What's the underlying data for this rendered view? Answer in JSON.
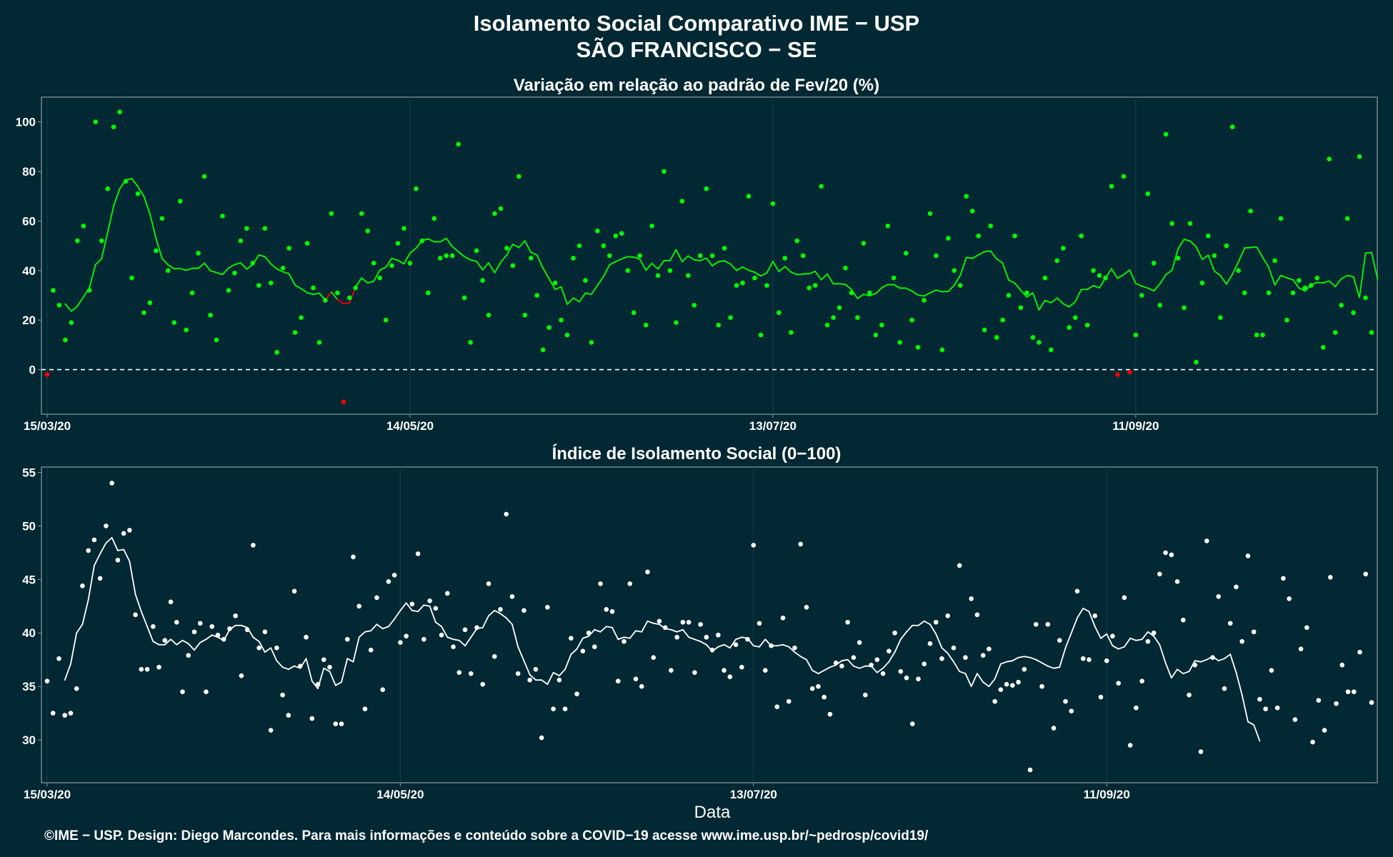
{
  "title_line1": "Isolamento Social Comparativo IME − USP",
  "title_line2": "SÃO FRANCISCO − SE",
  "xlabel": "Data",
  "footer": "©IME − USP. Design: Diego Marcondes. Para mais informações e conteúdo sobre a COVID−19 acesse www.ime.usp.br/~pedrosp/covid19/",
  "colors": {
    "background": "#022833",
    "positive": "#00ff00",
    "negative": "#ff0000",
    "index": "#ffffff",
    "frame": "#8a9ea4",
    "grid": "#163d48"
  },
  "chart_data": [
    {
      "type": "scatter",
      "title": "Variação em relação ao padrão de Fev/20 (%)",
      "start_date": "2020-03-15",
      "x_ticks": [
        "15/03/20",
        "14/05/20",
        "13/07/20",
        "11/09/20"
      ],
      "y_ticks": [
        0,
        20,
        40,
        60,
        80,
        100
      ],
      "ylim": [
        -18,
        110
      ],
      "reference_line": 0,
      "values": [
        -2,
        32,
        26,
        12,
        19,
        52,
        58,
        32,
        100,
        52,
        73,
        98,
        104,
        76,
        37,
        71,
        23,
        27,
        48,
        61,
        40,
        19,
        68,
        16,
        31,
        47,
        78,
        22,
        12,
        62,
        32,
        39,
        52,
        57,
        43,
        34,
        57,
        35,
        7,
        41,
        49,
        15,
        21,
        51,
        33,
        11,
        28,
        63,
        31,
        -13,
        29,
        33,
        63,
        56,
        43,
        37,
        20,
        42,
        51,
        57,
        43,
        73,
        52,
        31,
        61,
        45,
        46,
        46,
        91,
        29,
        11,
        48,
        36,
        22,
        63,
        65,
        49,
        42,
        78,
        22,
        45,
        30,
        8,
        17,
        35,
        20,
        14,
        45,
        50,
        36,
        11,
        56,
        50,
        46,
        54,
        55,
        40,
        23,
        46,
        18,
        58,
        38,
        80,
        40,
        19,
        68,
        38,
        26,
        46,
        73,
        46,
        18,
        49,
        21,
        34,
        35,
        70,
        37,
        14,
        34,
        67,
        23,
        45,
        15,
        52,
        46,
        33,
        34,
        74,
        18,
        21,
        25,
        41,
        31,
        21,
        51,
        31,
        14,
        18,
        58,
        37,
        11,
        47,
        20,
        9,
        28,
        63,
        46,
        8,
        53,
        40,
        34,
        70,
        64,
        54,
        16,
        58,
        13,
        20,
        30,
        54,
        25,
        31,
        13,
        11,
        37,
        8,
        44,
        49,
        17,
        21,
        54,
        18,
        40,
        38,
        37,
        74,
        -2,
        78,
        -1,
        14,
        30,
        71,
        43,
        26,
        95,
        59,
        45,
        25,
        59,
        3,
        35,
        54,
        46,
        21,
        50,
        98,
        40,
        31,
        64,
        14,
        14,
        31,
        44,
        61,
        20,
        31,
        36,
        33,
        34,
        37,
        9,
        85,
        15,
        26,
        61,
        23,
        86,
        29,
        15
      ],
      "rolling_mean": [
        null,
        null,
        null,
        26.5,
        23.6,
        25.6,
        29.3,
        33.1,
        42.4,
        44.7,
        55.3,
        66.1,
        73.0,
        76.6,
        77.1,
        73.9,
        69.9,
        62.9,
        52.9,
        44.9,
        42.3,
        40.7,
        40.8,
        40.1,
        40.9,
        40.9,
        43.0,
        39.9,
        39.2,
        38.4,
        41.0,
        42.4,
        43.1,
        40.6,
        42.4,
        46.3,
        45.6,
        42.7,
        40.6,
        39.5,
        38.7,
        34.1,
        32.7,
        31.0,
        30.4,
        30.9,
        28.1,
        31.3,
        28.3,
        26.6,
        27.0,
        33.3,
        37.0,
        35.0,
        35.7,
        40.1,
        41.3,
        44.9,
        44.1,
        42.7,
        47.0,
        49.0,
        52.1,
        52.8,
        51.6,
        51.6,
        53.0,
        49.7,
        47.6,
        45.6,
        44.3,
        43.7,
        40.3,
        43.1,
        39.1,
        43.3,
        46.3,
        50.6,
        49.3,
        52.0,
        47.3,
        46.3,
        40.9,
        36.7,
        32.4,
        33.4,
        26.4,
        28.9,
        27.4,
        30.9,
        30.4,
        34.0,
        37.6,
        42.3,
        43.6,
        44.7,
        45.6,
        45.4,
        44.6,
        40.1,
        42.9,
        40.6,
        44.0,
        44.0,
        48.4,
        43.6,
        45.9,
        44.3,
        44.0,
        45.0,
        41.9,
        43.6,
        43.9,
        42.6,
        40.0,
        41.4,
        40.1,
        39.3,
        37.8,
        39.0,
        43.7,
        39.6,
        41.6,
        39.4,
        38.3,
        38.6,
        38.7,
        39.7,
        36.3,
        38.6,
        34.6,
        34.7,
        34.4,
        32.3,
        28.7,
        30.4,
        29.8,
        30.7,
        33.0,
        34.3,
        34.3,
        32.9,
        32.9,
        31.7,
        30.1,
        29.7,
        31.0,
        32.1,
        31.4,
        31.6,
        34.1,
        38.1,
        45.3,
        44.9,
        46.3,
        47.6,
        47.9,
        44.7,
        43.0,
        36.1,
        34.9,
        32.0,
        29.3,
        31.0,
        24.1,
        27.9,
        27.0,
        28.9,
        26.6,
        25.3,
        27.4,
        32.3,
        32.4,
        33.9,
        33.0,
        37.0,
        40.7,
        36.9,
        38.3,
        40.2,
        34.8,
        33.7,
        32.9,
        31.8,
        34.6,
        38.4,
        40.1,
        48.7,
        52.6,
        51.9,
        49.6,
        44.5,
        46.2,
        39.8,
        38.0,
        34.5,
        38.5,
        43.5,
        49.1,
        49.3,
        49.5,
        45.3,
        41.3,
        34.2,
        38.0,
        37.0,
        36.3,
        33.0,
        31.7,
        34.2,
        35.2,
        35.0,
        35.8,
        33.5,
        36.7,
        38.0,
        37.5,
        29.2,
        47.0,
        47.3,
        36.4,
        null,
        null,
        null
      ]
    },
    {
      "type": "scatter",
      "title": "Índice de Isolamento Social (0−100)",
      "start_date": "2020-03-15",
      "x_ticks": [
        "15/03/20",
        "14/05/20",
        "13/07/20",
        "11/09/20"
      ],
      "y_ticks": [
        30,
        35,
        40,
        45,
        50,
        55
      ],
      "ylim": [
        26,
        55.5
      ],
      "values": [
        35.5,
        32.5,
        37.6,
        32.3,
        32.5,
        34.8,
        44.4,
        47.7,
        48.7,
        45.1,
        50.0,
        54.0,
        46.8,
        49.3,
        49.6,
        41.7,
        36.6,
        36.6,
        40.6,
        36.8,
        39.3,
        42.9,
        41.0,
        34.5,
        37.9,
        40.1,
        40.9,
        34.5,
        40.6,
        39.8,
        39.4,
        40.4,
        41.6,
        36.0,
        40.3,
        48.2,
        38.6,
        40.1,
        30.9,
        38.6,
        34.2,
        32.3,
        43.9,
        36.9,
        39.6,
        32.0,
        35.2,
        37.5,
        36.8,
        31.5,
        31.5,
        39.4,
        47.1,
        42.5,
        32.9,
        38.4,
        43.3,
        34.7,
        44.8,
        45.4,
        39.1,
        39.7,
        42.7,
        47.4,
        39.4,
        43.0,
        42.3,
        39.8,
        43.7,
        38.7,
        36.3,
        40.3,
        36.2,
        40.5,
        35.2,
        44.6,
        37.8,
        42.2,
        51.1,
        43.4,
        36.2,
        42.1,
        35.6,
        36.6,
        30.2,
        42.4,
        32.9,
        35.6,
        32.9,
        39.5,
        34.3,
        38.3,
        40.0,
        38.7,
        44.6,
        42.2,
        42.0,
        35.5,
        39.2,
        44.6,
        35.7,
        35.0,
        45.7,
        37.7,
        41.1,
        40.5,
        36.5,
        39.6,
        41.0,
        41.0,
        36.3,
        40.8,
        39.6,
        38.4,
        39.8,
        36.5,
        35.9,
        38.9,
        36.8,
        39.4,
        48.2,
        40.9,
        36.5,
        38.8,
        33.1,
        41.4,
        33.6,
        38.6,
        48.3,
        42.4,
        34.8,
        35.0,
        34.0,
        32.4,
        37.2,
        36.9,
        41.0,
        37.7,
        39.1,
        34.2,
        37.0,
        37.5,
        36.2,
        38.3,
        40.0,
        36.4,
        35.8,
        31.5,
        35.7,
        37.1,
        39.0,
        41.0,
        37.6,
        41.6,
        38.6,
        46.3,
        37.7,
        43.2,
        41.7,
        37.9,
        38.5,
        33.6,
        34.7,
        35.2,
        35.1,
        35.4,
        36.6,
        27.2,
        40.8,
        35.0,
        40.8,
        31.1,
        39.3,
        33.6,
        32.7,
        43.9,
        37.6,
        37.5,
        41.6,
        34.0,
        37.4,
        39.7,
        35.3,
        43.3,
        29.5,
        33.0,
        35.5,
        39.2,
        40.0,
        45.5,
        47.5,
        47.3,
        44.8,
        41.2,
        34.2,
        37.0,
        28.9,
        48.6,
        37.7,
        43.4,
        34.8,
        40.9,
        44.3,
        39.2,
        47.2,
        40.1,
        33.8,
        32.9,
        36.5,
        33.0,
        45.1,
        43.2,
        31.9,
        38.5,
        40.5,
        29.8,
        33.7,
        30.9,
        45.2,
        33.4,
        37.0,
        34.5,
        34.5,
        38.2,
        45.5,
        33.5
      ],
      "rolling_mean": [
        null,
        null,
        null,
        35.6,
        37.1,
        40.0,
        40.8,
        43.1,
        46.3,
        47.4,
        48.4,
        48.9,
        47.7,
        47.8,
        46.7,
        43.6,
        42.0,
        40.6,
        39.2,
        38.9,
        38.9,
        39.4,
        38.9,
        39.3,
        39.0,
        38.4,
        39.1,
        39.4,
        39.8,
        39.6,
        39.3,
        40.3,
        40.7,
        40.7,
        40.5,
        39.6,
        39.2,
        38.2,
        38.6,
        37.4,
        36.8,
        36.6,
        36.9,
        36.7,
        37.6,
        35.5,
        34.8,
        36.7,
        36.4,
        35.1,
        35.4,
        37.6,
        37.3,
        39.6,
        40.1,
        40.2,
        40.8,
        40.4,
        40.6,
        41.3,
        42.1,
        42.8,
        42.1,
        42.0,
        42.6,
        42.5,
        41.0,
        40.6,
        39.6,
        39.4,
        39.3,
        38.8,
        39.6,
        40.4,
        40.5,
        41.6,
        42.1,
        41.8,
        41.4,
        40.8,
        38.7,
        37.4,
        36.1,
        35.6,
        35.6,
        35.2,
        36.3,
        36.0,
        36.6,
        38.0,
        38.5,
        39.5,
        39.7,
        40.3,
        40.1,
        40.6,
        40.5,
        39.4,
        39.6,
        39.5,
        40.2,
        40.1,
        41.1,
        40.9,
        40.8,
        40.4,
        40.3,
        40.1,
        40.3,
        39.6,
        39.4,
        39.2,
        38.9,
        38.3,
        38.7,
        38.9,
        38.6,
        39.4,
        39.6,
        39.5,
        38.8,
        38.7,
        39.4,
        38.8,
        38.8,
        38.9,
        38.7,
        38.2,
        37.8,
        37.5,
        36.5,
        36.2,
        36.5,
        36.8,
        37.0,
        37.4,
        37.5,
        36.9,
        36.7,
        36.9,
        36.9,
        36.3,
        36.7,
        37.3,
        38.2,
        39.4,
        40.1,
        40.7,
        40.7,
        41.1,
        40.8,
        39.9,
        38.6,
        38.1,
        37.3,
        36.4,
        36.2,
        35.0,
        36.2,
        35.4,
        35.0,
        35.7,
        37.1,
        37.3,
        37.4,
        37.7,
        37.8,
        37.7,
        37.5,
        37.2,
        36.9,
        36.7,
        36.8,
        38.6,
        40.0,
        41.4,
        42.3,
        42.0,
        40.6,
        39.5,
        39.9,
        38.8,
        38.5,
        38.7,
        39.5,
        39.3,
        39.4,
        40.1,
        39.7,
        38.9,
        37.2,
        35.8,
        36.6,
        36.2,
        36.4,
        37.4,
        37.3,
        37.5,
        37.8,
        37.4,
        37.6,
        38.0,
        36.3,
        34.2,
        31.7,
        31.4,
        29.9,
        null,
        null,
        null
      ]
    }
  ]
}
